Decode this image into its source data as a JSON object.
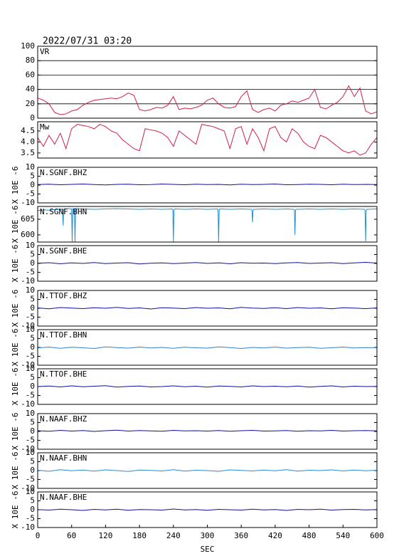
{
  "title": "2022/07/31 03:20",
  "chart_data": [
    {
      "type": "line",
      "title": "VR",
      "color": "#d0204a",
      "grid": true,
      "xlim": [
        0,
        600
      ],
      "ylim": [
        0,
        100
      ],
      "yticks": [
        0,
        20,
        40,
        60,
        80,
        100
      ],
      "x": [
        0,
        10,
        20,
        30,
        40,
        50,
        60,
        70,
        80,
        90,
        100,
        110,
        120,
        130,
        140,
        150,
        160,
        170,
        180,
        190,
        200,
        210,
        220,
        230,
        240,
        250,
        260,
        270,
        280,
        290,
        300,
        310,
        320,
        330,
        340,
        350,
        360,
        370,
        380,
        390,
        400,
        410,
        420,
        430,
        440,
        450,
        460,
        470,
        480,
        490,
        500,
        510,
        520,
        530,
        540,
        550,
        560,
        570,
        580,
        590,
        600
      ],
      "values": [
        28,
        25,
        20,
        8,
        5,
        6,
        10,
        12,
        18,
        22,
        25,
        26,
        27,
        28,
        27,
        30,
        35,
        32,
        12,
        10,
        12,
        15,
        14,
        18,
        30,
        12,
        14,
        13,
        15,
        18,
        25,
        28,
        20,
        15,
        14,
        16,
        30,
        38,
        12,
        8,
        12,
        14,
        10,
        18,
        20,
        24,
        22,
        25,
        28,
        40,
        15,
        13,
        18,
        22,
        30,
        45,
        30,
        42,
        10,
        6,
        9
      ]
    },
    {
      "type": "line",
      "title": "Mw",
      "color": "#d0204a",
      "grid": false,
      "xlim": [
        0,
        600
      ],
      "ylim": [
        3.27,
        4.92
      ],
      "yticks": [
        3.5,
        {
          "value": 4,
          "label": "4.0"
        },
        4.5
      ],
      "x": [
        0,
        10,
        20,
        30,
        40,
        50,
        60,
        70,
        80,
        90,
        100,
        110,
        120,
        130,
        140,
        150,
        160,
        170,
        180,
        190,
        200,
        210,
        220,
        230,
        240,
        250,
        260,
        270,
        280,
        290,
        300,
        310,
        320,
        330,
        340,
        350,
        360,
        370,
        380,
        390,
        400,
        410,
        420,
        430,
        440,
        450,
        460,
        470,
        480,
        490,
        500,
        510,
        520,
        530,
        540,
        550,
        560,
        570,
        580,
        590,
        600
      ],
      "values": [
        4.2,
        3.8,
        4.3,
        3.9,
        4.4,
        3.7,
        4.6,
        4.8,
        4.75,
        4.7,
        4.6,
        4.8,
        4.7,
        4.5,
        4.4,
        4.1,
        3.9,
        3.7,
        3.6,
        4.6,
        4.55,
        4.5,
        4.4,
        4.2,
        3.8,
        4.5,
        4.3,
        4.1,
        3.9,
        4.8,
        4.75,
        4.7,
        4.6,
        4.5,
        3.7,
        4.6,
        4.7,
        3.9,
        4.6,
        4.2,
        3.6,
        4.6,
        4.7,
        4.2,
        4.0,
        4.6,
        4.4,
        4.0,
        3.8,
        3.7,
        4.3,
        4.2,
        4.0,
        3.8,
        3.6,
        3.5,
        3.6,
        3.4,
        3.5,
        3.9,
        4.2
      ]
    },
    {
      "type": "line",
      "title": "N.SGNF.BHZ",
      "ylabel": "X 10E -6",
      "color": "#1010a0",
      "xlim": [
        0,
        600
      ],
      "ylim": [
        -10,
        10
      ],
      "yticks": [
        -10,
        -5,
        0,
        5,
        10
      ],
      "x": [
        0,
        20,
        40,
        60,
        80,
        100,
        120,
        140,
        160,
        180,
        200,
        220,
        240,
        260,
        280,
        300,
        320,
        340,
        360,
        380,
        400,
        420,
        440,
        460,
        480,
        500,
        520,
        540,
        560,
        580,
        600
      ],
      "values": [
        0.3,
        0.5,
        0.2,
        0.4,
        0.6,
        0.3,
        0.1,
        0.4,
        0.5,
        0.2,
        0.3,
        0.6,
        0.4,
        0.2,
        0.5,
        0.3,
        0.4,
        0.1,
        0.5,
        0.3,
        0.4,
        0.6,
        0.2,
        0.3,
        0.5,
        0.4,
        0.2,
        0.5,
        0.3,
        0.4,
        0.3
      ]
    },
    {
      "type": "line",
      "title": "N.SGNF.BHN",
      "ylabel": "X 10E -6",
      "color": "#1e90d0",
      "xlim": [
        0,
        600
      ],
      "ylim": [
        597.7,
        609.1
      ],
      "yticks": [
        600,
        605
      ],
      "x": [
        0,
        10,
        20,
        30,
        44,
        45,
        46,
        55,
        60,
        61,
        62,
        65,
        66,
        67,
        80,
        100,
        120,
        140,
        160,
        180,
        200,
        220,
        238,
        239,
        240,
        241,
        242,
        260,
        280,
        300,
        318,
        319,
        320,
        321,
        322,
        340,
        360,
        378,
        379,
        380,
        381,
        382,
        400,
        420,
        440,
        453,
        454,
        455,
        456,
        457,
        480,
        500,
        520,
        540,
        560,
        578,
        579,
        580,
        581,
        582,
        600
      ],
      "values": [
        607.8,
        608.0,
        607.9,
        608.1,
        608.2,
        603.0,
        608.2,
        608.4,
        608.3,
        597.7,
        608.4,
        608.3,
        597.7,
        608.4,
        608.3,
        608.2,
        608.3,
        608.4,
        608.3,
        608.2,
        608.3,
        608.2,
        608.3,
        608.1,
        597.7,
        608.1,
        608.3,
        608.2,
        608.3,
        608.2,
        608.3,
        608.0,
        597.7,
        608.0,
        608.3,
        608.2,
        608.3,
        608.2,
        607.9,
        604.0,
        607.9,
        608.2,
        608.3,
        608.2,
        608.3,
        608.2,
        608.0,
        600.0,
        608.0,
        608.2,
        608.3,
        608.2,
        608.3,
        608.2,
        608.3,
        608.2,
        607.8,
        598.0,
        607.8,
        608.2,
        608.3
      ]
    },
    {
      "type": "line",
      "title": "N.SGNF.BHE",
      "ylabel": "X 10E -6",
      "color": "#1010a0",
      "xlim": [
        0,
        600
      ],
      "ylim": [
        -10,
        10
      ],
      "yticks": [
        -10,
        -5,
        0,
        5,
        10
      ],
      "x": [
        0,
        20,
        40,
        60,
        80,
        100,
        120,
        140,
        160,
        180,
        200,
        220,
        240,
        260,
        280,
        300,
        320,
        340,
        360,
        380,
        400,
        420,
        440,
        460,
        480,
        500,
        520,
        540,
        560,
        580,
        600
      ],
      "values": [
        0.1,
        0.4,
        -0.2,
        0.3,
        0.0,
        0.5,
        -0.1,
        0.2,
        0.4,
        -0.3,
        0.1,
        0.3,
        -0.1,
        0.2,
        0.5,
        0.0,
        0.3,
        -0.2,
        0.4,
        0.1,
        0.2,
        -0.1,
        0.3,
        0.5,
        0.0,
        0.2,
        0.4,
        -0.1,
        0.3,
        0.6,
        0.2
      ]
    },
    {
      "type": "line",
      "title": "N.TTOF.BHZ",
      "ylabel": "X 10E -6",
      "color": "#1010a0",
      "xlim": [
        0,
        600
      ],
      "ylim": [
        -10,
        10
      ],
      "yticks": [
        -10,
        -5,
        0,
        5,
        10
      ],
      "x": [
        0,
        20,
        40,
        60,
        80,
        100,
        120,
        140,
        160,
        180,
        200,
        220,
        240,
        260,
        280,
        300,
        320,
        340,
        360,
        380,
        400,
        420,
        440,
        460,
        480,
        500,
        520,
        540,
        560,
        580,
        600
      ],
      "values": [
        0.2,
        -0.3,
        0.4,
        0.1,
        -0.2,
        0.3,
        0.0,
        0.5,
        -0.1,
        0.2,
        -0.4,
        0.3,
        0.1,
        -0.2,
        0.4,
        0.0,
        0.2,
        -0.3,
        0.5,
        0.1,
        -0.1,
        0.3,
        -0.2,
        0.4,
        0.0,
        0.2,
        -0.3,
        0.3,
        0.1,
        -0.2,
        0.2
      ]
    },
    {
      "type": "line",
      "title": "N.TTOF.BHN",
      "ylabel": "X 10E -6",
      "color": "#3080d0",
      "xlim": [
        0,
        600
      ],
      "ylim": [
        -10,
        10
      ],
      "yticks": [
        -10,
        -5,
        0,
        5,
        10
      ],
      "x": [
        0,
        20,
        40,
        60,
        80,
        100,
        120,
        140,
        160,
        180,
        200,
        220,
        240,
        260,
        280,
        300,
        320,
        340,
        360,
        380,
        400,
        420,
        440,
        460,
        480,
        500,
        520,
        540,
        560,
        580,
        600
      ],
      "values": [
        -0.3,
        0.2,
        -0.5,
        0.1,
        -0.2,
        -0.6,
        0.3,
        -0.1,
        -0.4,
        0.2,
        -0.3,
        0.0,
        -0.5,
        0.1,
        -0.2,
        -0.4,
        0.3,
        -0.1,
        -0.6,
        0.0,
        -0.3,
        0.2,
        -0.4,
        -0.1,
        0.1,
        -0.5,
        -0.2,
        0.2,
        -0.3,
        -0.1,
        -0.2
      ]
    },
    {
      "type": "line",
      "title": "N.TTOF.BHE",
      "ylabel": "X 10E -6",
      "color": "#1010a0",
      "xlim": [
        0,
        600
      ],
      "ylim": [
        -10,
        10
      ],
      "yticks": [
        -10,
        -5,
        0,
        5,
        10
      ],
      "x": [
        0,
        20,
        40,
        60,
        80,
        100,
        120,
        140,
        160,
        180,
        200,
        220,
        240,
        260,
        280,
        300,
        320,
        340,
        360,
        380,
        400,
        420,
        440,
        460,
        480,
        500,
        520,
        540,
        560,
        580,
        600
      ],
      "values": [
        0.0,
        0.3,
        -0.2,
        0.4,
        -0.1,
        0.2,
        0.5,
        -0.3,
        0.1,
        0.3,
        -0.2,
        0.0,
        0.4,
        -0.1,
        0.2,
        -0.3,
        0.3,
        0.1,
        -0.2,
        0.4,
        0.0,
        0.2,
        -0.1,
        0.3,
        -0.3,
        0.1,
        0.4,
        -0.2,
        0.2,
        0.0,
        0.1
      ]
    },
    {
      "type": "line",
      "title": "N.NAAF.BHZ",
      "ylabel": "X 10E -6",
      "color": "#1010a0",
      "xlim": [
        0,
        600
      ],
      "ylim": [
        -10,
        10
      ],
      "yticks": [
        -10,
        -5,
        0,
        5,
        10
      ],
      "x": [
        0,
        20,
        40,
        60,
        80,
        100,
        120,
        140,
        160,
        180,
        200,
        220,
        240,
        260,
        280,
        300,
        320,
        340,
        360,
        380,
        400,
        420,
        440,
        460,
        480,
        500,
        520,
        540,
        560,
        580,
        600
      ],
      "values": [
        0.4,
        0.1,
        0.6,
        0.2,
        0.5,
        0.0,
        0.4,
        0.7,
        0.2,
        0.5,
        0.3,
        0.1,
        0.6,
        0.3,
        0.4,
        0.2,
        0.5,
        0.1,
        0.4,
        0.6,
        0.2,
        0.3,
        0.5,
        0.1,
        0.4,
        0.3,
        0.6,
        0.2,
        0.4,
        0.5,
        0.3
      ]
    },
    {
      "type": "line",
      "title": "N.NAAF.BHN",
      "ylabel": "X 10E -6",
      "color": "#2a8ad0",
      "xlim": [
        0,
        600
      ],
      "ylim": [
        -10,
        10
      ],
      "yticks": [
        -10,
        -5,
        0,
        5,
        10
      ],
      "x": [
        0,
        20,
        40,
        60,
        80,
        100,
        120,
        140,
        160,
        180,
        200,
        220,
        240,
        260,
        280,
        300,
        320,
        340,
        360,
        380,
        400,
        420,
        440,
        460,
        480,
        500,
        520,
        540,
        560,
        580,
        600
      ],
      "values": [
        0.2,
        -0.4,
        0.5,
        -0.1,
        0.3,
        -0.3,
        0.4,
        0.0,
        -0.5,
        0.3,
        0.1,
        -0.2,
        0.5,
        -0.3,
        0.2,
        0.0,
        -0.4,
        0.4,
        0.1,
        -0.2,
        0.3,
        -0.1,
        0.5,
        -0.3,
        0.2,
        0.0,
        0.4,
        -0.2,
        0.3,
        -0.1,
        0.2
      ]
    },
    {
      "type": "line",
      "title": "N.NAAF.BHE",
      "ylabel": "X 10E -6",
      "color": "#1010a0",
      "xlim": [
        0,
        600
      ],
      "ylim": [
        -10,
        10
      ],
      "yticks": [
        -10,
        -5,
        0,
        5,
        10
      ],
      "x": [
        0,
        20,
        40,
        60,
        80,
        100,
        120,
        140,
        160,
        180,
        200,
        220,
        240,
        260,
        280,
        300,
        320,
        340,
        360,
        380,
        400,
        420,
        440,
        460,
        480,
        500,
        520,
        540,
        560,
        580,
        600
      ],
      "values": [
        0.1,
        -0.2,
        0.3,
        0.0,
        -0.4,
        0.2,
        -0.1,
        0.3,
        -0.3,
        0.1,
        0.0,
        -0.2,
        0.4,
        -0.1,
        0.1,
        -0.3,
        0.2,
        0.0,
        -0.2,
        0.3,
        -0.1,
        0.1,
        -0.4,
        0.2,
        0.0,
        0.3,
        -0.2,
        0.1,
        0.2,
        -0.1,
        0.1
      ],
      "xticks": [
        0,
        60,
        120,
        180,
        240,
        300,
        360,
        420,
        480,
        540,
        600
      ],
      "xlabel": "SEC"
    }
  ]
}
